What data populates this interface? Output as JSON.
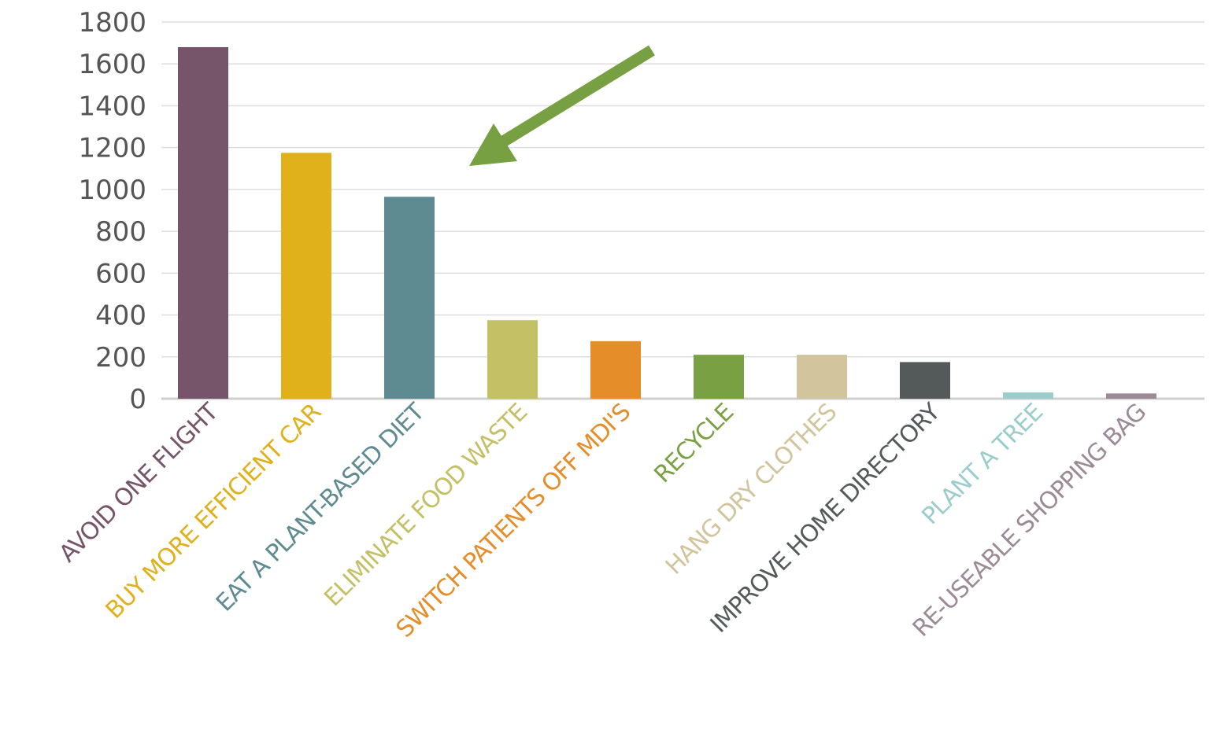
{
  "chart_data": {
    "type": "bar",
    "categories": [
      "AVOID ONE FLIGHT",
      "BUY MORE EFFICIENT CAR",
      "EAT A PLANT-BASED DIET",
      "ELIMINATE FOOD WASTE",
      "SWITCH PATIENTS OFF MDI'S",
      "RECYCLE",
      "HANG DRY CLOTHES",
      "IMPROVE HOME DIRECTORY",
      "PLANT A TREE",
      "RE-USEABLE SHOPPING BAG"
    ],
    "values": [
      1680,
      1175,
      965,
      375,
      275,
      210,
      210,
      175,
      30,
      25
    ],
    "colors": [
      "#765469",
      "#E0B11B",
      "#5E8B92",
      "#C4C066",
      "#E58D28",
      "#7AA044",
      "#D2C49C",
      "#545A5A",
      "#9ACDCB",
      "#9D8A97"
    ],
    "yticks": [
      "0",
      "200",
      "400",
      "600",
      "800",
      "1000",
      "1200",
      "1400",
      "1600",
      "1800"
    ],
    "ylim": [
      0,
      1800
    ],
    "grid": true,
    "annotation": {
      "type": "arrow",
      "color": "#76A042",
      "points_to": "EAT A PLANT-BASED DIET"
    }
  }
}
